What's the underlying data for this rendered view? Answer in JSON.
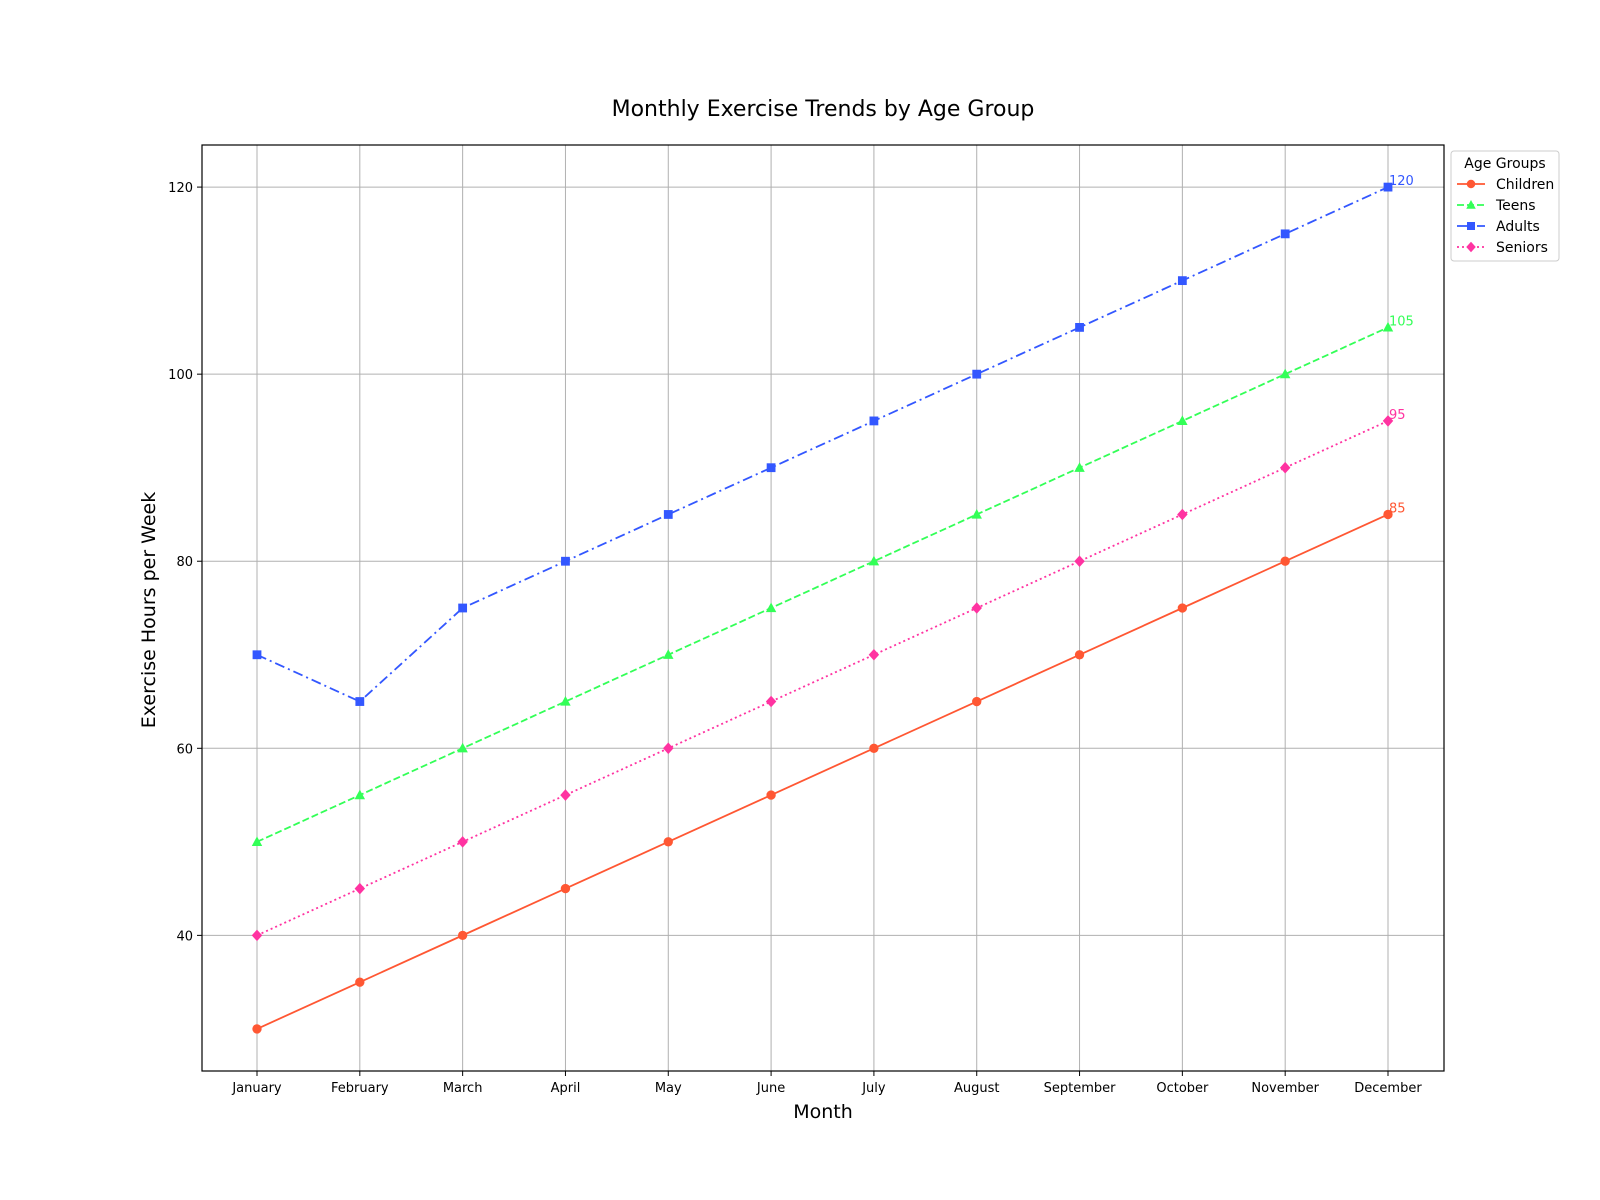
{
  "chart_data": {
    "type": "line",
    "title": "Monthly Exercise Trends by Age Group",
    "xlabel": "Month",
    "ylabel": "Exercise Hours per Week",
    "categories": [
      "January",
      "February",
      "March",
      "April",
      "May",
      "June",
      "July",
      "August",
      "September",
      "October",
      "November",
      "December"
    ],
    "ylim": [
      25.5,
      124.5
    ],
    "yticks": [
      40,
      60,
      80,
      100,
      120
    ],
    "grid": true,
    "legend": {
      "title": "Age Groups",
      "placement": "outside top-right"
    },
    "series": [
      {
        "name": "Children",
        "values": [
          30,
          35,
          40,
          45,
          50,
          55,
          60,
          65,
          70,
          75,
          80,
          85
        ],
        "color": "#ff5733",
        "linestyle": "solid",
        "marker": "circle",
        "end_label": "85"
      },
      {
        "name": "Teens",
        "values": [
          50,
          55,
          60,
          65,
          70,
          75,
          80,
          85,
          90,
          95,
          100,
          105
        ],
        "color": "#33ff57",
        "linestyle": "dashed",
        "marker": "triangle",
        "end_label": "105"
      },
      {
        "name": "Adults",
        "values": [
          70,
          65,
          75,
          80,
          85,
          90,
          95,
          100,
          105,
          110,
          115,
          120
        ],
        "color": "#3357ff",
        "linestyle": "dashdot",
        "marker": "square",
        "end_label": "120"
      },
      {
        "name": "Seniors",
        "values": [
          40,
          45,
          50,
          55,
          60,
          65,
          70,
          75,
          80,
          85,
          90,
          95
        ],
        "color": "#ff33a1",
        "linestyle": "dotted",
        "marker": "diamond",
        "end_label": "95"
      }
    ]
  }
}
